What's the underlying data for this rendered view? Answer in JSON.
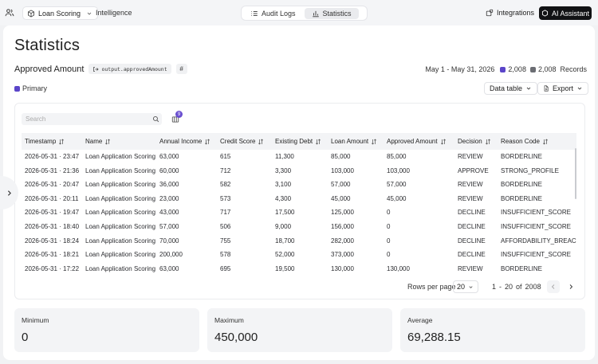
{
  "topbar": {
    "project": "Loan Scoring",
    "section": "Intelligence",
    "tabs": [
      {
        "label": "Audit Logs",
        "active": false
      },
      {
        "label": "Statistics",
        "active": true
      }
    ],
    "integrations": "Integrations",
    "ai_assistant": "AI Assistant"
  },
  "page": {
    "title": "Statistics",
    "metric": "Approved Amount",
    "path": "output.approvedAmount",
    "hash": "#"
  },
  "range": {
    "dates": "May 1 - May 31, 2026",
    "primary_count": "2,008",
    "total_count": "2,008",
    "records_label": "Records",
    "primary_color": "#5b45c9",
    "secondary_color": "#6b6d73"
  },
  "legend": {
    "label": "Primary",
    "color": "#5b45c9"
  },
  "controls": {
    "data_table": "Data table",
    "export": "Export",
    "search_placeholder": "Search",
    "columns_badge": "9"
  },
  "table": {
    "headers": [
      "Timestamp",
      "Name",
      "Annual Income",
      "Credit Score",
      "Existing Debt",
      "Loan Amount",
      "Approved Amount",
      "Decision",
      "Reason Code"
    ],
    "rows": [
      [
        "2026-05-31 · 23:47",
        "Loan Application Scoring",
        "63,000",
        "615",
        "11,300",
        "85,000",
        "85,000",
        "REVIEW",
        "BORDERLINE"
      ],
      [
        "2026-05-31 · 21:36",
        "Loan Application Scoring",
        "60,000",
        "712",
        "3,300",
        "103,000",
        "103,000",
        "APPROVE",
        "STRONG_PROFILE"
      ],
      [
        "2026-05-31 · 20:47",
        "Loan Application Scoring",
        "36,000",
        "582",
        "3,100",
        "57,000",
        "57,000",
        "REVIEW",
        "BORDERLINE"
      ],
      [
        "2026-05-31 · 20:11",
        "Loan Application Scoring",
        "23,000",
        "573",
        "4,300",
        "45,000",
        "45,000",
        "REVIEW",
        "BORDERLINE"
      ],
      [
        "2026-05-31 · 19:47",
        "Loan Application Scoring",
        "43,000",
        "717",
        "17,500",
        "125,000",
        "0",
        "DECLINE",
        "INSUFFICIENT_SCORE"
      ],
      [
        "2026-05-31 · 18:40",
        "Loan Application Scoring",
        "57,000",
        "506",
        "9,000",
        "156,000",
        "0",
        "DECLINE",
        "INSUFFICIENT_SCORE"
      ],
      [
        "2026-05-31 · 18:24",
        "Loan Application Scoring",
        "70,000",
        "755",
        "18,700",
        "282,000",
        "0",
        "DECLINE",
        "AFFORDABILITY_BREACH"
      ],
      [
        "2026-05-31 · 18:21",
        "Loan Application Scoring",
        "200,000",
        "578",
        "52,000",
        "373,000",
        "0",
        "DECLINE",
        "INSUFFICIENT_SCORE"
      ],
      [
        "2026-05-31 · 17:22",
        "Loan Application Scoring",
        "63,000",
        "695",
        "19,500",
        "130,000",
        "130,000",
        "REVIEW",
        "BORDERLINE"
      ]
    ]
  },
  "pagination": {
    "rows_per_page_label": "Rows per page",
    "rows_per_page": "20",
    "from": "1",
    "dash": "-",
    "to": "20",
    "of_label": "of",
    "total": "2008"
  },
  "stats": [
    {
      "label": "Minimum",
      "value": "0"
    },
    {
      "label": "Maximum",
      "value": "450,000"
    },
    {
      "label": "Average",
      "value": "69,288.15"
    }
  ]
}
